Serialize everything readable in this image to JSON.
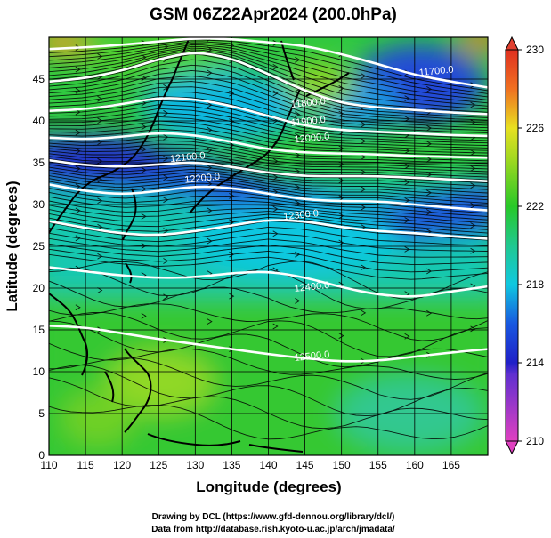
{
  "chart_data": {
    "type": "heatmap",
    "title": "GSM 06Z22Apr2024 (200.0hPa)",
    "xlabel": "Longitude (degrees)",
    "ylabel": "Latitude  (degrees)",
    "xlim": [
      110,
      170
    ],
    "ylim": [
      0,
      50
    ],
    "x_ticks": [
      "110",
      "115",
      "120",
      "125",
      "130",
      "135",
      "140",
      "145",
      "150",
      "155",
      "160",
      "165"
    ],
    "y_ticks": [
      "0",
      "5",
      "10",
      "15",
      "20",
      "25",
      "30",
      "35",
      "40",
      "45"
    ],
    "grid": true,
    "shaded_variable_range": [
      210,
      230
    ],
    "colorbar": {
      "ticks": [
        "210",
        "214",
        "218",
        "222",
        "226",
        "230"
      ],
      "colors": [
        "#e040c0",
        "#2020c8",
        "#10c8e0",
        "#28c828",
        "#e8e020",
        "#f07020",
        "#e03020"
      ]
    },
    "contour_labels": [
      {
        "text": "11700.0",
        "lon": 163,
        "lat": 45.6
      },
      {
        "text": "11800.0",
        "lon": 145.5,
        "lat": 41.8
      },
      {
        "text": "11900.0",
        "lon": 145.5,
        "lat": 39.6
      },
      {
        "text": "12000.0",
        "lon": 146,
        "lat": 37.6
      },
      {
        "text": "12100.0",
        "lon": 129,
        "lat": 35.3
      },
      {
        "text": "12200.0",
        "lon": 131,
        "lat": 32.8
      },
      {
        "text": "12300.0",
        "lon": 144.5,
        "lat": 28.4
      },
      {
        "text": "12400.0",
        "lon": 146,
        "lat": 19.8
      },
      {
        "text": "12500.0",
        "lon": 146,
        "lat": 11.5
      }
    ],
    "contours": [
      {
        "level": "11700.0",
        "lat": [
          48.6,
          48.8,
          49.1,
          49.5,
          49.9,
          49.8,
          49.4,
          49.0,
          48.0,
          46.8,
          45.5,
          44.7,
          44.0
        ]
      },
      {
        "level": "11800.0",
        "lat": [
          44.7,
          45.1,
          46.0,
          47.4,
          48.3,
          47.5,
          45.6,
          43.6,
          42.1,
          41.6,
          41.3,
          41.0,
          40.8
        ]
      },
      {
        "level": "11900.0",
        "lat": [
          41.2,
          41.4,
          42.0,
          42.8,
          42.6,
          41.8,
          40.6,
          39.4,
          38.9,
          38.7,
          38.5,
          38.3,
          38.2
        ]
      },
      {
        "level": "12000.0",
        "lat": [
          38.0,
          37.8,
          38.1,
          38.6,
          38.3,
          37.5,
          36.6,
          36.2,
          36.1,
          36.0,
          35.8,
          35.7,
          35.6
        ]
      },
      {
        "level": "12100.0",
        "lat": [
          35.3,
          34.7,
          34.5,
          34.8,
          35.1,
          34.5,
          33.8,
          33.4,
          33.4,
          33.4,
          33.2,
          33.0,
          32.8
        ]
      },
      {
        "level": "12200.0",
        "lat": [
          32.4,
          31.6,
          31.2,
          31.6,
          32.2,
          32.0,
          31.3,
          30.6,
          30.4,
          30.4,
          30.0,
          29.6,
          29.3
        ]
      },
      {
        "level": "12300.0",
        "lat": [
          28.0,
          27.2,
          26.5,
          26.3,
          26.8,
          27.5,
          28.2,
          28.0,
          27.3,
          26.8,
          26.6,
          26.2,
          25.9
        ]
      },
      {
        "level": "12400.0",
        "lat": [
          22.5,
          22.0,
          21.5,
          21.2,
          21.3,
          21.8,
          22.0,
          21.3,
          20.1,
          19.2,
          18.9,
          19.6,
          20.2
        ]
      },
      {
        "level": "12500.0",
        "lat": [
          15.5,
          15.3,
          14.6,
          13.9,
          13.3,
          12.7,
          12.1,
          11.6,
          11.2,
          11.3,
          11.8,
          12.3,
          12.7
        ]
      }
    ]
  },
  "credits": {
    "line1": "Drawing by DCL (https://www.gfd-dennou.org/library/dcl/)",
    "line2": "Data from http://database.rish.kyoto-u.ac.jp/arch/jmadata/"
  }
}
